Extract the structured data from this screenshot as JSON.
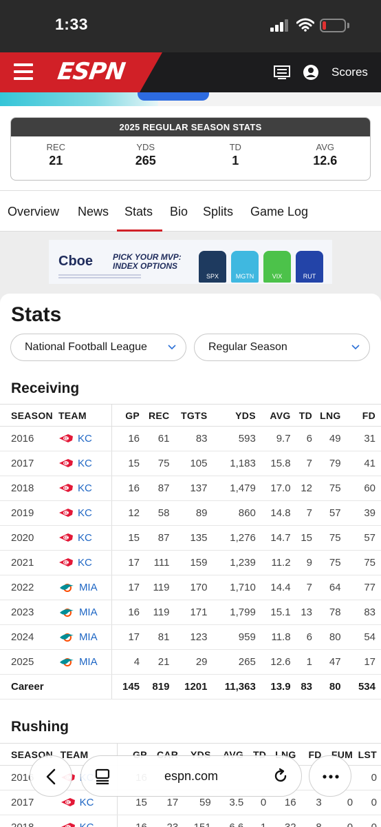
{
  "status_bar": {
    "time": "1:33"
  },
  "nav": {
    "logo": "ESPN",
    "scores_label": "Scores"
  },
  "summary": {
    "title": "2025 REGULAR SEASON STATS",
    "cells": [
      {
        "label": "REC",
        "value": "21"
      },
      {
        "label": "YDS",
        "value": "265"
      },
      {
        "label": "TD",
        "value": "1"
      },
      {
        "label": "AVG",
        "value": "12.6"
      }
    ]
  },
  "tabs": [
    "Overview",
    "News",
    "Stats",
    "Bio",
    "Splits",
    "Game Log"
  ],
  "active_tab": "Stats",
  "ad": {
    "brand": "Cboe",
    "headline": "PICK YOUR MVP: INDEX OPTIONS",
    "jerseys": [
      "SPX",
      "MGTN",
      "VIX",
      "RUT"
    ]
  },
  "stats": {
    "title": "Stats",
    "league_dropdown": "National Football League",
    "season_dropdown": "Regular Season"
  },
  "receiving": {
    "title": "Receiving",
    "columns": [
      "SEASON",
      "TEAM",
      "GP",
      "REC",
      "TGTS",
      "YDS",
      "AVG",
      "TD",
      "LNG",
      "FD"
    ],
    "rows": [
      [
        "2016",
        "KC",
        "16",
        "61",
        "83",
        "593",
        "9.7",
        "6",
        "49",
        "31"
      ],
      [
        "2017",
        "KC",
        "15",
        "75",
        "105",
        "1,183",
        "15.8",
        "7",
        "79",
        "41"
      ],
      [
        "2018",
        "KC",
        "16",
        "87",
        "137",
        "1,479",
        "17.0",
        "12",
        "75",
        "60"
      ],
      [
        "2019",
        "KC",
        "12",
        "58",
        "89",
        "860",
        "14.8",
        "7",
        "57",
        "39"
      ],
      [
        "2020",
        "KC",
        "15",
        "87",
        "135",
        "1,276",
        "14.7",
        "15",
        "75",
        "57"
      ],
      [
        "2021",
        "KC",
        "17",
        "111",
        "159",
        "1,239",
        "11.2",
        "9",
        "75",
        "75"
      ],
      [
        "2022",
        "MIA",
        "17",
        "119",
        "170",
        "1,710",
        "14.4",
        "7",
        "64",
        "77"
      ],
      [
        "2023",
        "MIA",
        "16",
        "119",
        "171",
        "1,799",
        "15.1",
        "13",
        "78",
        "83"
      ],
      [
        "2024",
        "MIA",
        "17",
        "81",
        "123",
        "959",
        "11.8",
        "6",
        "80",
        "54"
      ],
      [
        "2025",
        "MIA",
        "4",
        "21",
        "29",
        "265",
        "12.6",
        "1",
        "47",
        "17"
      ]
    ],
    "career": [
      "Career",
      "",
      "145",
      "819",
      "1201",
      "11,363",
      "13.9",
      "83",
      "80",
      "534"
    ]
  },
  "rushing": {
    "title": "Rushing",
    "columns": [
      "SEASON",
      "TEAM",
      "GP",
      "CAR",
      "YDS",
      "AVG",
      "TD",
      "LNG",
      "FD",
      "FUM",
      "LST"
    ],
    "rows": [
      [
        "2016",
        "KC",
        "16",
        "",
        "",
        "",
        "",
        "",
        "",
        "",
        "0"
      ],
      [
        "2017",
        "KC",
        "15",
        "17",
        "59",
        "3.5",
        "0",
        "16",
        "3",
        "0",
        "0"
      ],
      [
        "2018",
        "KC",
        "16",
        "23",
        "151",
        "6.6",
        "1",
        "32",
        "8",
        "0",
        "0"
      ]
    ]
  },
  "browser": {
    "url": "espn.com"
  }
}
